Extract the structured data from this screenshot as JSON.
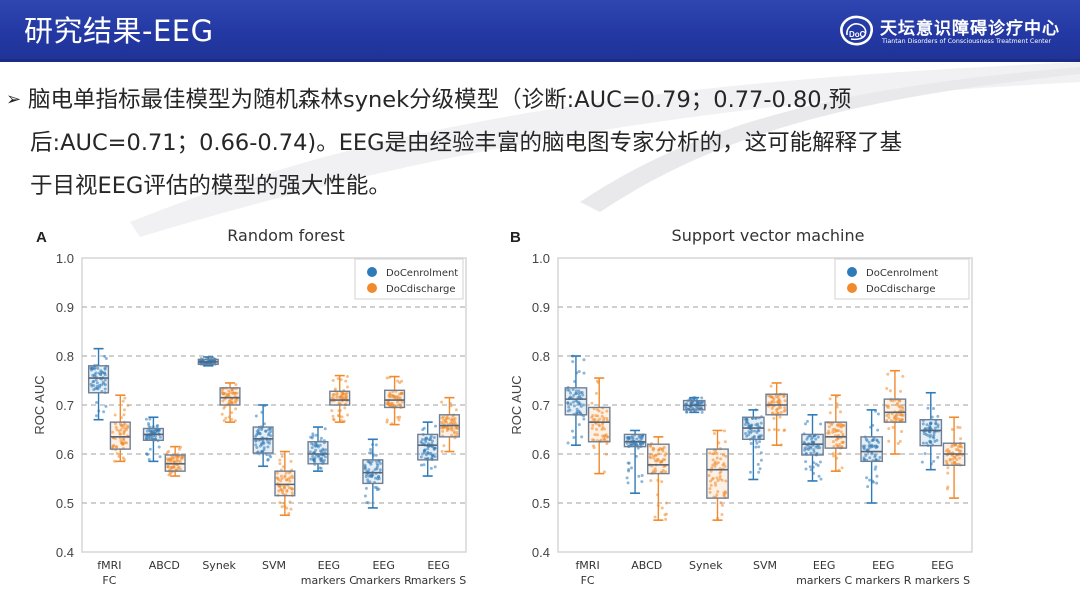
{
  "header": {
    "title": "研究结果-EEG",
    "logo_name_cn": "天坛意识障碍诊疗中心",
    "logo_name_en": "Tiantan Disorders of Consciousness Treatment Center",
    "logo_icon": "brain-doc-logo-icon",
    "background_color": "#2338a3"
  },
  "body": {
    "bullet_icon": "arrow-bullet-icon",
    "lines": [
      "脑电单指标最佳模型为随机森林synek分级模型（诊断:AUC=0.79；0.77-0.80,预",
      "后:AUC=0.71；0.66-0.74)。EEG是由经验丰富的脑电图专家分析的，这可能解释了基",
      "于目视EEG评估的模型的强大性能。"
    ]
  },
  "chart_data": [
    {
      "type": "box",
      "panel_label": "A",
      "title": "Random forest",
      "xlabel": "",
      "ylabel": "ROC AUC",
      "ylim": [
        0.4,
        1.0
      ],
      "yticks": [
        "0.4",
        "0.5",
        "0.6",
        "0.7",
        "0.8",
        "0.9",
        "1.0"
      ],
      "grid": "dashed horizontal at 0.5, 0.6, 0.7, 0.8, 0.9",
      "legend_position": "top-right",
      "categories": [
        [
          "fMRI",
          "FC"
        ],
        [
          "ABCD"
        ],
        [
          "Synek"
        ],
        [
          "SVM"
        ],
        [
          "EEG",
          "markers C"
        ],
        [
          "EEG",
          "markers R"
        ],
        [
          "EEG",
          "markers S"
        ]
      ],
      "series": [
        {
          "name": "DoCenrolment",
          "color": "#2f7ab8",
          "boxes": [
            {
              "min": 0.67,
              "q1": 0.725,
              "median": 0.755,
              "q3": 0.78,
              "max": 0.815
            },
            {
              "min": 0.585,
              "q1": 0.628,
              "median": 0.64,
              "q3": 0.652,
              "max": 0.675
            },
            {
              "min": 0.78,
              "q1": 0.783,
              "median": 0.788,
              "q3": 0.793,
              "max": 0.798
            },
            {
              "min": 0.575,
              "q1": 0.602,
              "median": 0.631,
              "q3": 0.655,
              "max": 0.7
            },
            {
              "min": 0.565,
              "q1": 0.58,
              "median": 0.6,
              "q3": 0.625,
              "max": 0.655
            },
            {
              "min": 0.49,
              "q1": 0.54,
              "median": 0.562,
              "q3": 0.588,
              "max": 0.63
            },
            {
              "min": 0.555,
              "q1": 0.588,
              "median": 0.618,
              "q3": 0.64,
              "max": 0.665
            }
          ]
        },
        {
          "name": "DoCdischarge",
          "color": "#f08a2c",
          "boxes": [
            {
              "min": 0.585,
              "q1": 0.61,
              "median": 0.635,
              "q3": 0.665,
              "max": 0.72
            },
            {
              "min": 0.555,
              "q1": 0.565,
              "median": 0.58,
              "q3": 0.598,
              "max": 0.615
            },
            {
              "min": 0.665,
              "q1": 0.7,
              "median": 0.715,
              "q3": 0.735,
              "max": 0.745
            },
            {
              "min": 0.475,
              "q1": 0.515,
              "median": 0.538,
              "q3": 0.565,
              "max": 0.605
            },
            {
              "min": 0.665,
              "q1": 0.7,
              "median": 0.71,
              "q3": 0.728,
              "max": 0.76
            },
            {
              "min": 0.66,
              "q1": 0.695,
              "median": 0.71,
              "q3": 0.73,
              "max": 0.758
            },
            {
              "min": 0.605,
              "q1": 0.635,
              "median": 0.658,
              "q3": 0.68,
              "max": 0.715
            }
          ]
        }
      ]
    },
    {
      "type": "box",
      "panel_label": "B",
      "title": "Support vector machine",
      "xlabel": "",
      "ylabel": "ROC AUC",
      "ylim": [
        0.4,
        1.0
      ],
      "yticks": [
        "0.4",
        "0.5",
        "0.6",
        "0.7",
        "0.8",
        "0.9",
        "1.0"
      ],
      "grid": "dashed horizontal at 0.5, 0.6, 0.7, 0.8, 0.9",
      "legend_position": "top-right",
      "categories": [
        [
          "fMRI",
          "FC"
        ],
        [
          "ABCD"
        ],
        [
          "Synek"
        ],
        [
          "SVM"
        ],
        [
          "EEG",
          "markers C"
        ],
        [
          "EEG",
          "markers R"
        ],
        [
          "EEG",
          "markers S"
        ]
      ],
      "series": [
        {
          "name": "DoCenrolment",
          "color": "#2f7ab8",
          "boxes": [
            {
              "min": 0.618,
              "q1": 0.68,
              "median": 0.712,
              "q3": 0.735,
              "max": 0.8
            },
            {
              "min": 0.52,
              "q1": 0.615,
              "median": 0.625,
              "q3": 0.64,
              "max": 0.648
            },
            {
              "min": 0.685,
              "q1": 0.69,
              "median": 0.699,
              "q3": 0.709,
              "max": 0.715
            },
            {
              "min": 0.548,
              "q1": 0.63,
              "median": 0.653,
              "q3": 0.675,
              "max": 0.69
            },
            {
              "min": 0.545,
              "q1": 0.598,
              "median": 0.62,
              "q3": 0.64,
              "max": 0.68
            },
            {
              "min": 0.5,
              "q1": 0.585,
              "median": 0.605,
              "q3": 0.635,
              "max": 0.69
            },
            {
              "min": 0.568,
              "q1": 0.617,
              "median": 0.648,
              "q3": 0.67,
              "max": 0.725
            }
          ]
        },
        {
          "name": "DoCdischarge",
          "color": "#f08a2c",
          "boxes": [
            {
              "min": 0.56,
              "q1": 0.625,
              "median": 0.665,
              "q3": 0.695,
              "max": 0.755
            },
            {
              "min": 0.465,
              "q1": 0.56,
              "median": 0.578,
              "q3": 0.62,
              "max": 0.635
            },
            {
              "min": 0.465,
              "q1": 0.51,
              "median": 0.568,
              "q3": 0.61,
              "max": 0.648
            },
            {
              "min": 0.618,
              "q1": 0.68,
              "median": 0.7,
              "q3": 0.722,
              "max": 0.745
            },
            {
              "min": 0.565,
              "q1": 0.612,
              "median": 0.635,
              "q3": 0.665,
              "max": 0.72
            },
            {
              "min": 0.6,
              "q1": 0.665,
              "median": 0.685,
              "q3": 0.712,
              "max": 0.77
            },
            {
              "min": 0.51,
              "q1": 0.577,
              "median": 0.6,
              "q3": 0.622,
              "max": 0.675
            }
          ]
        }
      ]
    }
  ]
}
